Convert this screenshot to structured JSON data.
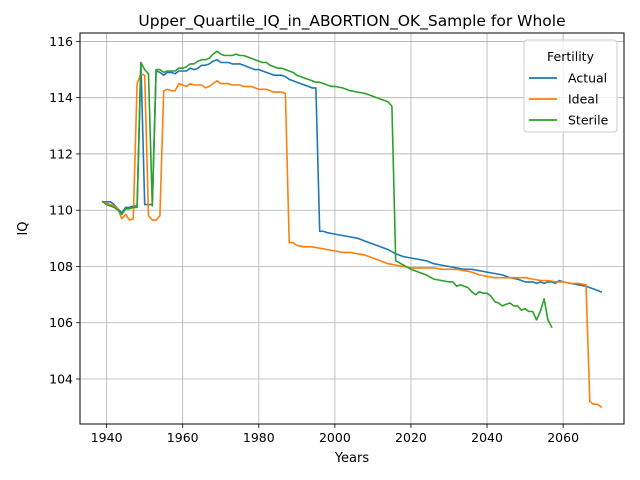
{
  "chart_data": {
    "type": "line",
    "title": "Upper_Quartile_IQ_in_ABORTION_OK_Sample for Whole",
    "xlabel": "Years",
    "ylabel": "IQ",
    "xlim": [
      1933,
      2076
    ],
    "ylim": [
      102.4,
      116.3
    ],
    "xticks": [
      1940,
      1960,
      1980,
      2000,
      2020,
      2040,
      2060
    ],
    "yticks": [
      104,
      106,
      108,
      110,
      112,
      114,
      116
    ],
    "grid": true,
    "legend": {
      "title": "Fertility",
      "placement": "top-right"
    },
    "series": [
      {
        "name": "Actual",
        "color": "#1f77b4",
        "points": [
          [
            1939,
            110.3
          ],
          [
            1940,
            110.3
          ],
          [
            1941,
            110.3
          ],
          [
            1942,
            110.2
          ],
          [
            1943,
            110.05
          ],
          [
            1944,
            109.9
          ],
          [
            1945,
            110.1
          ],
          [
            1946,
            110.1
          ],
          [
            1947,
            110.15
          ],
          [
            1948,
            110.15
          ],
          [
            1949,
            115.25
          ],
          [
            1950,
            110.2
          ],
          [
            1951,
            110.2
          ],
          [
            1952,
            110.2
          ],
          [
            1953,
            114.95
          ],
          [
            1954,
            114.9
          ],
          [
            1955,
            114.8
          ],
          [
            1956,
            114.9
          ],
          [
            1957,
            114.9
          ],
          [
            1958,
            114.85
          ],
          [
            1959,
            114.95
          ],
          [
            1960,
            114.95
          ],
          [
            1961,
            114.95
          ],
          [
            1962,
            115.05
          ],
          [
            1963,
            115.0
          ],
          [
            1964,
            115.05
          ],
          [
            1965,
            115.15
          ],
          [
            1966,
            115.15
          ],
          [
            1967,
            115.2
          ],
          [
            1968,
            115.3
          ],
          [
            1969,
            115.35
          ],
          [
            1970,
            115.25
          ],
          [
            1971,
            115.25
          ],
          [
            1972,
            115.25
          ],
          [
            1973,
            115.2
          ],
          [
            1974,
            115.2
          ],
          [
            1975,
            115.2
          ],
          [
            1976,
            115.15
          ],
          [
            1977,
            115.1
          ],
          [
            1978,
            115.05
          ],
          [
            1979,
            115.0
          ],
          [
            1980,
            115.0
          ],
          [
            1981,
            114.95
          ],
          [
            1982,
            114.9
          ],
          [
            1983,
            114.85
          ],
          [
            1984,
            114.8
          ],
          [
            1985,
            114.8
          ],
          [
            1986,
            114.8
          ],
          [
            1987,
            114.75
          ],
          [
            1988,
            114.65
          ],
          [
            1989,
            114.6
          ],
          [
            1990,
            114.55
          ],
          [
            1991,
            114.5
          ],
          [
            1992,
            114.45
          ],
          [
            1993,
            114.4
          ],
          [
            1994,
            114.35
          ],
          [
            1995,
            114.35
          ],
          [
            1996,
            109.25
          ],
          [
            1997,
            109.25
          ],
          [
            1998,
            109.2
          ],
          [
            2000,
            109.15
          ],
          [
            2002,
            109.1
          ],
          [
            2004,
            109.05
          ],
          [
            2006,
            109.0
          ],
          [
            2008,
            108.9
          ],
          [
            2010,
            108.8
          ],
          [
            2012,
            108.7
          ],
          [
            2014,
            108.6
          ],
          [
            2016,
            108.45
          ],
          [
            2018,
            108.35
          ],
          [
            2020,
            108.3
          ],
          [
            2022,
            108.25
          ],
          [
            2024,
            108.2
          ],
          [
            2026,
            108.1
          ],
          [
            2028,
            108.05
          ],
          [
            2030,
            108.0
          ],
          [
            2032,
            107.95
          ],
          [
            2034,
            107.9
          ],
          [
            2036,
            107.9
          ],
          [
            2038,
            107.85
          ],
          [
            2040,
            107.8
          ],
          [
            2042,
            107.75
          ],
          [
            2044,
            107.7
          ],
          [
            2046,
            107.6
          ],
          [
            2048,
            107.55
          ],
          [
            2050,
            107.45
          ],
          [
            2052,
            107.45
          ],
          [
            2053,
            107.4
          ],
          [
            2054,
            107.45
          ],
          [
            2055,
            107.4
          ],
          [
            2056,
            107.45
          ],
          [
            2057,
            107.45
          ],
          [
            2058,
            107.4
          ],
          [
            2059,
            107.5
          ],
          [
            2060,
            107.45
          ],
          [
            2062,
            107.4
          ],
          [
            2064,
            107.35
          ],
          [
            2066,
            107.3
          ],
          [
            2068,
            107.2
          ],
          [
            2070,
            107.1
          ]
        ]
      },
      {
        "name": "Ideal",
        "color": "#ff7f0e",
        "points": [
          [
            1939,
            110.3
          ],
          [
            1940,
            110.25
          ],
          [
            1941,
            110.2
          ],
          [
            1942,
            110.15
          ],
          [
            1943,
            110.05
          ],
          [
            1944,
            109.7
          ],
          [
            1945,
            109.85
          ],
          [
            1946,
            109.65
          ],
          [
            1947,
            109.7
          ],
          [
            1948,
            114.5
          ],
          [
            1949,
            114.85
          ],
          [
            1950,
            114.8
          ],
          [
            1951,
            109.8
          ],
          [
            1952,
            109.65
          ],
          [
            1953,
            109.65
          ],
          [
            1954,
            109.8
          ],
          [
            1955,
            114.25
          ],
          [
            1956,
            114.3
          ],
          [
            1957,
            114.25
          ],
          [
            1958,
            114.25
          ],
          [
            1959,
            114.5
          ],
          [
            1960,
            114.45
          ],
          [
            1961,
            114.4
          ],
          [
            1962,
            114.5
          ],
          [
            1963,
            114.45
          ],
          [
            1964,
            114.45
          ],
          [
            1965,
            114.45
          ],
          [
            1966,
            114.35
          ],
          [
            1967,
            114.4
          ],
          [
            1968,
            114.5
          ],
          [
            1969,
            114.6
          ],
          [
            1970,
            114.5
          ],
          [
            1971,
            114.5
          ],
          [
            1972,
            114.5
          ],
          [
            1973,
            114.45
          ],
          [
            1974,
            114.45
          ],
          [
            1975,
            114.45
          ],
          [
            1976,
            114.4
          ],
          [
            1977,
            114.4
          ],
          [
            1978,
            114.4
          ],
          [
            1979,
            114.35
          ],
          [
            1980,
            114.3
          ],
          [
            1981,
            114.3
          ],
          [
            1982,
            114.3
          ],
          [
            1983,
            114.25
          ],
          [
            1984,
            114.2
          ],
          [
            1985,
            114.2
          ],
          [
            1986,
            114.2
          ],
          [
            1987,
            114.15
          ],
          [
            1988,
            108.85
          ],
          [
            1989,
            108.85
          ],
          [
            1990,
            108.75
          ],
          [
            1992,
            108.7
          ],
          [
            1994,
            108.7
          ],
          [
            1996,
            108.65
          ],
          [
            1998,
            108.6
          ],
          [
            2000,
            108.55
          ],
          [
            2002,
            108.5
          ],
          [
            2004,
            108.5
          ],
          [
            2006,
            108.45
          ],
          [
            2008,
            108.4
          ],
          [
            2010,
            108.3
          ],
          [
            2012,
            108.2
          ],
          [
            2014,
            108.1
          ],
          [
            2016,
            108.05
          ],
          [
            2018,
            108.0
          ],
          [
            2020,
            107.95
          ],
          [
            2022,
            107.95
          ],
          [
            2024,
            107.95
          ],
          [
            2026,
            107.95
          ],
          [
            2028,
            107.9
          ],
          [
            2030,
            107.9
          ],
          [
            2032,
            107.9
          ],
          [
            2034,
            107.85
          ],
          [
            2036,
            107.8
          ],
          [
            2038,
            107.7
          ],
          [
            2040,
            107.65
          ],
          [
            2042,
            107.6
          ],
          [
            2044,
            107.6
          ],
          [
            2046,
            107.6
          ],
          [
            2048,
            107.6
          ],
          [
            2050,
            107.6
          ],
          [
            2052,
            107.55
          ],
          [
            2054,
            107.5
          ],
          [
            2056,
            107.5
          ],
          [
            2058,
            107.45
          ],
          [
            2060,
            107.45
          ],
          [
            2062,
            107.4
          ],
          [
            2064,
            107.4
          ],
          [
            2066,
            107.35
          ],
          [
            2067,
            103.2
          ],
          [
            2068,
            103.1
          ],
          [
            2069,
            103.1
          ],
          [
            2070,
            103.0
          ]
        ]
      },
      {
        "name": "Sterile",
        "color": "#2ca02c",
        "points": [
          [
            1939,
            110.3
          ],
          [
            1940,
            110.2
          ],
          [
            1941,
            110.15
          ],
          [
            1942,
            110.1
          ],
          [
            1943,
            110.0
          ],
          [
            1944,
            109.85
          ],
          [
            1945,
            110.05
          ],
          [
            1946,
            110.05
          ],
          [
            1947,
            110.1
          ],
          [
            1948,
            110.1
          ],
          [
            1949,
            115.25
          ],
          [
            1950,
            115.0
          ],
          [
            1951,
            114.85
          ],
          [
            1952,
            110.15
          ],
          [
            1953,
            115.0
          ],
          [
            1954,
            115.0
          ],
          [
            1955,
            114.9
          ],
          [
            1956,
            114.95
          ],
          [
            1957,
            114.95
          ],
          [
            1958,
            114.95
          ],
          [
            1959,
            115.05
          ],
          [
            1960,
            115.05
          ],
          [
            1961,
            115.1
          ],
          [
            1962,
            115.2
          ],
          [
            1963,
            115.2
          ],
          [
            1964,
            115.3
          ],
          [
            1965,
            115.35
          ],
          [
            1966,
            115.35
          ],
          [
            1967,
            115.4
          ],
          [
            1968,
            115.55
          ],
          [
            1969,
            115.65
          ],
          [
            1970,
            115.55
          ],
          [
            1971,
            115.5
          ],
          [
            1972,
            115.5
          ],
          [
            1973,
            115.5
          ],
          [
            1974,
            115.55
          ],
          [
            1975,
            115.5
          ],
          [
            1976,
            115.5
          ],
          [
            1977,
            115.45
          ],
          [
            1978,
            115.4
          ],
          [
            1979,
            115.35
          ],
          [
            1980,
            115.3
          ],
          [
            1981,
            115.25
          ],
          [
            1982,
            115.25
          ],
          [
            1983,
            115.15
          ],
          [
            1984,
            115.1
          ],
          [
            1985,
            115.05
          ],
          [
            1986,
            115.05
          ],
          [
            1987,
            115.0
          ],
          [
            1988,
            114.95
          ],
          [
            1989,
            114.9
          ],
          [
            1990,
            114.8
          ],
          [
            1991,
            114.75
          ],
          [
            1992,
            114.7
          ],
          [
            1993,
            114.65
          ],
          [
            1994,
            114.6
          ],
          [
            1995,
            114.55
          ],
          [
            1996,
            114.55
          ],
          [
            1997,
            114.5
          ],
          [
            1998,
            114.45
          ],
          [
            1999,
            114.4
          ],
          [
            2000,
            114.4
          ],
          [
            2002,
            114.35
          ],
          [
            2004,
            114.25
          ],
          [
            2006,
            114.2
          ],
          [
            2008,
            114.15
          ],
          [
            2010,
            114.05
          ],
          [
            2012,
            113.95
          ],
          [
            2014,
            113.85
          ],
          [
            2015,
            113.7
          ],
          [
            2016,
            108.2
          ],
          [
            2018,
            108.05
          ],
          [
            2020,
            107.9
          ],
          [
            2022,
            107.8
          ],
          [
            2024,
            107.7
          ],
          [
            2026,
            107.55
          ],
          [
            2028,
            107.5
          ],
          [
            2030,
            107.45
          ],
          [
            2031,
            107.45
          ],
          [
            2032,
            107.3
          ],
          [
            2033,
            107.35
          ],
          [
            2034,
            107.3
          ],
          [
            2035,
            107.25
          ],
          [
            2036,
            107.1
          ],
          [
            2037,
            107.0
          ],
          [
            2038,
            107.1
          ],
          [
            2039,
            107.05
          ],
          [
            2040,
            107.05
          ],
          [
            2041,
            106.95
          ],
          [
            2042,
            106.75
          ],
          [
            2043,
            106.7
          ],
          [
            2044,
            106.6
          ],
          [
            2045,
            106.65
          ],
          [
            2046,
            106.7
          ],
          [
            2047,
            106.6
          ],
          [
            2048,
            106.6
          ],
          [
            2049,
            106.45
          ],
          [
            2050,
            106.5
          ],
          [
            2051,
            106.4
          ],
          [
            2052,
            106.4
          ],
          [
            2053,
            106.1
          ],
          [
            2054,
            106.4
          ],
          [
            2055,
            106.85
          ],
          [
            2056,
            106.1
          ],
          [
            2057,
            105.85
          ]
        ]
      }
    ]
  }
}
